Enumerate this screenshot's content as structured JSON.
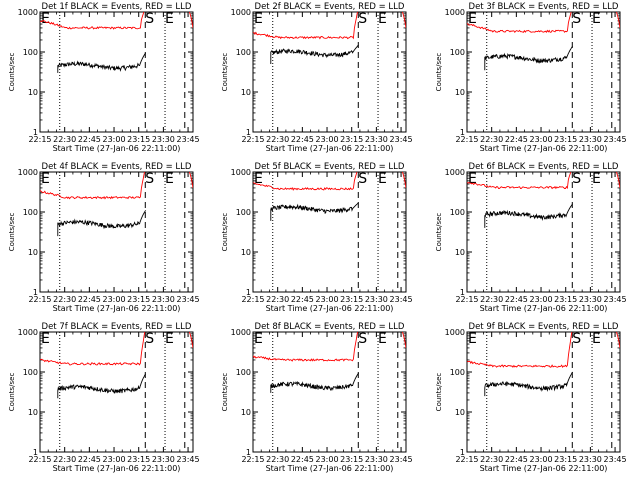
{
  "chart_data": [
    {
      "type": "line",
      "title": "Det 1f BLACK = Events, RED = LLD",
      "xlabel": "Start Time (27-Jan-06 22:11:00)",
      "ylabel": "Counts/sec",
      "y_scale": "log",
      "ylim": [
        1,
        1000
      ],
      "xlim": [
        22.25,
        23.8
      ],
      "x_tick_labels": [
        "22:15",
        "22:30",
        "22:45",
        "23:00",
        "23:15",
        "23:30",
        "23:45"
      ],
      "y_tick_labels": [
        "1",
        "10",
        "100",
        "1000"
      ],
      "markers": [
        {
          "label": "E",
          "time": "22:11"
        },
        {
          "label": "S",
          "time": "23:19"
        },
        {
          "label": "E",
          "time": "23:31"
        }
      ],
      "dotted_lines": [
        "22:27",
        "23:31"
      ],
      "dashed_lines": [
        "23:19",
        "23:43"
      ],
      "series": [
        {
          "color": "#000000",
          "start": 22.43,
          "end": 23.32,
          "level": 45,
          "start_level": 30,
          "spike": 95
        },
        {
          "color": "#ff0000",
          "start": 22.25,
          "end": 23.8,
          "level": 400,
          "start_level": 620
        }
      ]
    },
    {
      "type": "line",
      "title": "Det 2f BLACK = Events, RED = LLD",
      "xlabel": "Start Time (27-Jan-06 22:11:00)",
      "ylabel": "Counts/sec",
      "y_scale": "log",
      "ylim": [
        1,
        1000
      ],
      "xlim": [
        22.25,
        23.8
      ],
      "x_tick_labels": [
        "22:15",
        "22:30",
        "22:45",
        "23:00",
        "23:15",
        "23:30",
        "23:45"
      ],
      "y_tick_labels": [
        "1",
        "10",
        "100",
        "1000"
      ],
      "markers": [
        {
          "label": "E",
          "time": "22:11"
        },
        {
          "label": "S",
          "time": "23:19"
        },
        {
          "label": "E",
          "time": "23:31"
        }
      ],
      "dotted_lines": [
        "22:27",
        "23:31"
      ],
      "dashed_lines": [
        "23:19",
        "23:43"
      ],
      "series": [
        {
          "color": "#000000",
          "start": 22.43,
          "end": 23.32,
          "level": 95,
          "start_level": 50,
          "spike": 150
        },
        {
          "color": "#ff0000",
          "start": 22.25,
          "end": 23.8,
          "level": 230,
          "start_level": 300
        }
      ]
    },
    {
      "type": "line",
      "title": "Det 3f BLACK = Events, RED = LLD",
      "xlabel": "Start Time (27-Jan-06 22:11:00)",
      "ylabel": "Counts/sec",
      "y_scale": "log",
      "ylim": [
        1,
        1000
      ],
      "xlim": [
        22.25,
        23.8
      ],
      "x_tick_labels": [
        "22:15",
        "22:30",
        "22:45",
        "23:00",
        "23:15",
        "23:30",
        "23:45"
      ],
      "y_tick_labels": [
        "1",
        "10",
        "100",
        "1000"
      ],
      "markers": [
        {
          "label": "E",
          "time": "22:11"
        },
        {
          "label": "S",
          "time": "23:19"
        },
        {
          "label": "E",
          "time": "23:31"
        }
      ],
      "dotted_lines": [
        "22:27",
        "23:31"
      ],
      "dashed_lines": [
        "23:19",
        "23:43"
      ],
      "series": [
        {
          "color": "#000000",
          "start": 22.43,
          "end": 23.32,
          "level": 70,
          "start_level": 35,
          "spike": 140
        },
        {
          "color": "#ff0000",
          "start": 22.25,
          "end": 23.8,
          "level": 330,
          "start_level": 500
        }
      ]
    },
    {
      "type": "line",
      "title": "Det 4f BLACK = Events, RED = LLD",
      "xlabel": "Start Time (27-Jan-06 22:11:00)",
      "ylabel": "Counts/sec",
      "y_scale": "log",
      "ylim": [
        1,
        1000
      ],
      "xlim": [
        22.25,
        23.8
      ],
      "x_tick_labels": [
        "22:15",
        "22:30",
        "22:45",
        "23:00",
        "23:15",
        "23:30",
        "23:45"
      ],
      "y_tick_labels": [
        "1",
        "10",
        "100",
        "1000"
      ],
      "markers": [
        {
          "label": "E",
          "time": "22:11"
        },
        {
          "label": "S",
          "time": "23:19"
        },
        {
          "label": "E",
          "time": "23:31"
        }
      ],
      "dotted_lines": [
        "22:27",
        "23:31"
      ],
      "dashed_lines": [
        "23:19",
        "23:43"
      ],
      "series": [
        {
          "color": "#000000",
          "start": 22.43,
          "end": 23.32,
          "level": 50,
          "start_level": 25,
          "spike": 110
        },
        {
          "color": "#ff0000",
          "start": 22.25,
          "end": 23.8,
          "level": 230,
          "start_level": 330
        }
      ]
    },
    {
      "type": "line",
      "title": "Det 5f BLACK = Events, RED = LLD",
      "xlabel": "Start Time (27-Jan-06 22:11:00)",
      "ylabel": "Counts/sec",
      "y_scale": "log",
      "ylim": [
        1,
        1000
      ],
      "xlim": [
        22.25,
        23.8
      ],
      "x_tick_labels": [
        "22:15",
        "22:30",
        "22:45",
        "23:00",
        "23:15",
        "23:30",
        "23:45"
      ],
      "y_tick_labels": [
        "1",
        "10",
        "100",
        "1000"
      ],
      "markers": [
        {
          "label": "E",
          "time": "22:11"
        },
        {
          "label": "S",
          "time": "23:19"
        },
        {
          "label": "E",
          "time": "23:31"
        }
      ],
      "dotted_lines": [
        "22:27",
        "23:31"
      ],
      "dashed_lines": [
        "23:19",
        "23:43"
      ],
      "series": [
        {
          "color": "#000000",
          "start": 22.43,
          "end": 23.32,
          "level": 120,
          "start_level": 60,
          "spike": 170
        },
        {
          "color": "#ff0000",
          "start": 22.25,
          "end": 23.8,
          "level": 380,
          "start_level": 520
        }
      ]
    },
    {
      "type": "line",
      "title": "Det 6f BLACK = Events, RED = LLD",
      "xlabel": "Start Time (27-Jan-06 22:11:00)",
      "ylabel": "Counts/sec",
      "y_scale": "log",
      "ylim": [
        1,
        1000
      ],
      "xlim": [
        22.25,
        23.8
      ],
      "x_tick_labels": [
        "22:15",
        "22:30",
        "22:45",
        "23:00",
        "23:15",
        "23:30",
        "23:45"
      ],
      "y_tick_labels": [
        "1",
        "10",
        "100",
        "1000"
      ],
      "markers": [
        {
          "label": "E",
          "time": "22:11"
        },
        {
          "label": "S",
          "time": "23:19"
        },
        {
          "label": "E",
          "time": "23:31"
        }
      ],
      "dotted_lines": [
        "22:27",
        "23:31"
      ],
      "dashed_lines": [
        "23:19",
        "23:43"
      ],
      "series": [
        {
          "color": "#000000",
          "start": 22.43,
          "end": 23.32,
          "level": 85,
          "start_level": 40,
          "spike": 160
        },
        {
          "color": "#ff0000",
          "start": 22.25,
          "end": 23.8,
          "level": 410,
          "start_level": 560
        }
      ]
    },
    {
      "type": "line",
      "title": "Det 7f BLACK = Events, RED = LLD",
      "xlabel": "Start Time (27-Jan-06 22:11:00)",
      "ylabel": "Counts/sec",
      "y_scale": "log",
      "ylim": [
        1,
        1000
      ],
      "xlim": [
        22.25,
        23.8
      ],
      "x_tick_labels": [
        "22:15",
        "22:30",
        "22:45",
        "23:00",
        "23:15",
        "23:30",
        "23:45"
      ],
      "y_tick_labels": [
        "1",
        "10",
        "100",
        "1000"
      ],
      "markers": [
        {
          "label": "E",
          "time": "22:11"
        },
        {
          "label": "S",
          "time": "23:19"
        },
        {
          "label": "E",
          "time": "23:31"
        }
      ],
      "dotted_lines": [
        "22:27",
        "23:31"
      ],
      "dashed_lines": [
        "23:19",
        "23:43"
      ],
      "series": [
        {
          "color": "#000000",
          "start": 22.43,
          "end": 23.32,
          "level": 38,
          "start_level": 22,
          "spike": 90
        },
        {
          "color": "#ff0000",
          "start": 22.25,
          "end": 23.8,
          "level": 160,
          "start_level": 200
        }
      ]
    },
    {
      "type": "line",
      "title": "Det 8f BLACK = Events, RED = LLD",
      "xlabel": "Start Time (27-Jan-06 22:11:00)",
      "ylabel": "Counts/sec",
      "y_scale": "log",
      "ylim": [
        1,
        1000
      ],
      "xlim": [
        22.25,
        23.8
      ],
      "x_tick_labels": [
        "22:15",
        "22:30",
        "22:45",
        "23:00",
        "23:15",
        "23:30",
        "23:45"
      ],
      "y_tick_labels": [
        "1",
        "10",
        "100",
        "1000"
      ],
      "markers": [
        {
          "label": "E",
          "time": "22:11"
        },
        {
          "label": "S",
          "time": "23:19"
        },
        {
          "label": "E",
          "time": "23:31"
        }
      ],
      "dotted_lines": [
        "22:27",
        "23:31"
      ],
      "dashed_lines": [
        "23:19",
        "23:43"
      ],
      "series": [
        {
          "color": "#000000",
          "start": 22.43,
          "end": 23.32,
          "level": 45,
          "start_level": 30,
          "spike": 95
        },
        {
          "color": "#ff0000",
          "start": 22.25,
          "end": 23.8,
          "level": 200,
          "start_level": 240
        }
      ]
    },
    {
      "type": "line",
      "title": "Det 9f BLACK = Events, RED = LLD",
      "xlabel": "Start Time (27-Jan-06 22:11:00)",
      "ylabel": "Counts/sec",
      "y_scale": "log",
      "ylim": [
        1,
        1000
      ],
      "xlim": [
        22.25,
        23.8
      ],
      "x_tick_labels": [
        "22:15",
        "22:30",
        "22:45",
        "23:00",
        "23:15",
        "23:30",
        "23:45"
      ],
      "y_tick_labels": [
        "1",
        "10",
        "100",
        "1000"
      ],
      "markers": [
        {
          "label": "E",
          "time": "22:11"
        },
        {
          "label": "S",
          "time": "23:19"
        },
        {
          "label": "E",
          "time": "23:31"
        }
      ],
      "dotted_lines": [
        "22:27",
        "23:31"
      ],
      "dashed_lines": [
        "23:19",
        "23:43"
      ],
      "series": [
        {
          "color": "#000000",
          "start": 22.43,
          "end": 23.32,
          "level": 45,
          "start_level": 25,
          "spike": 100
        },
        {
          "color": "#ff0000",
          "start": 22.25,
          "end": 23.8,
          "level": 140,
          "start_level": 180
        }
      ]
    }
  ]
}
